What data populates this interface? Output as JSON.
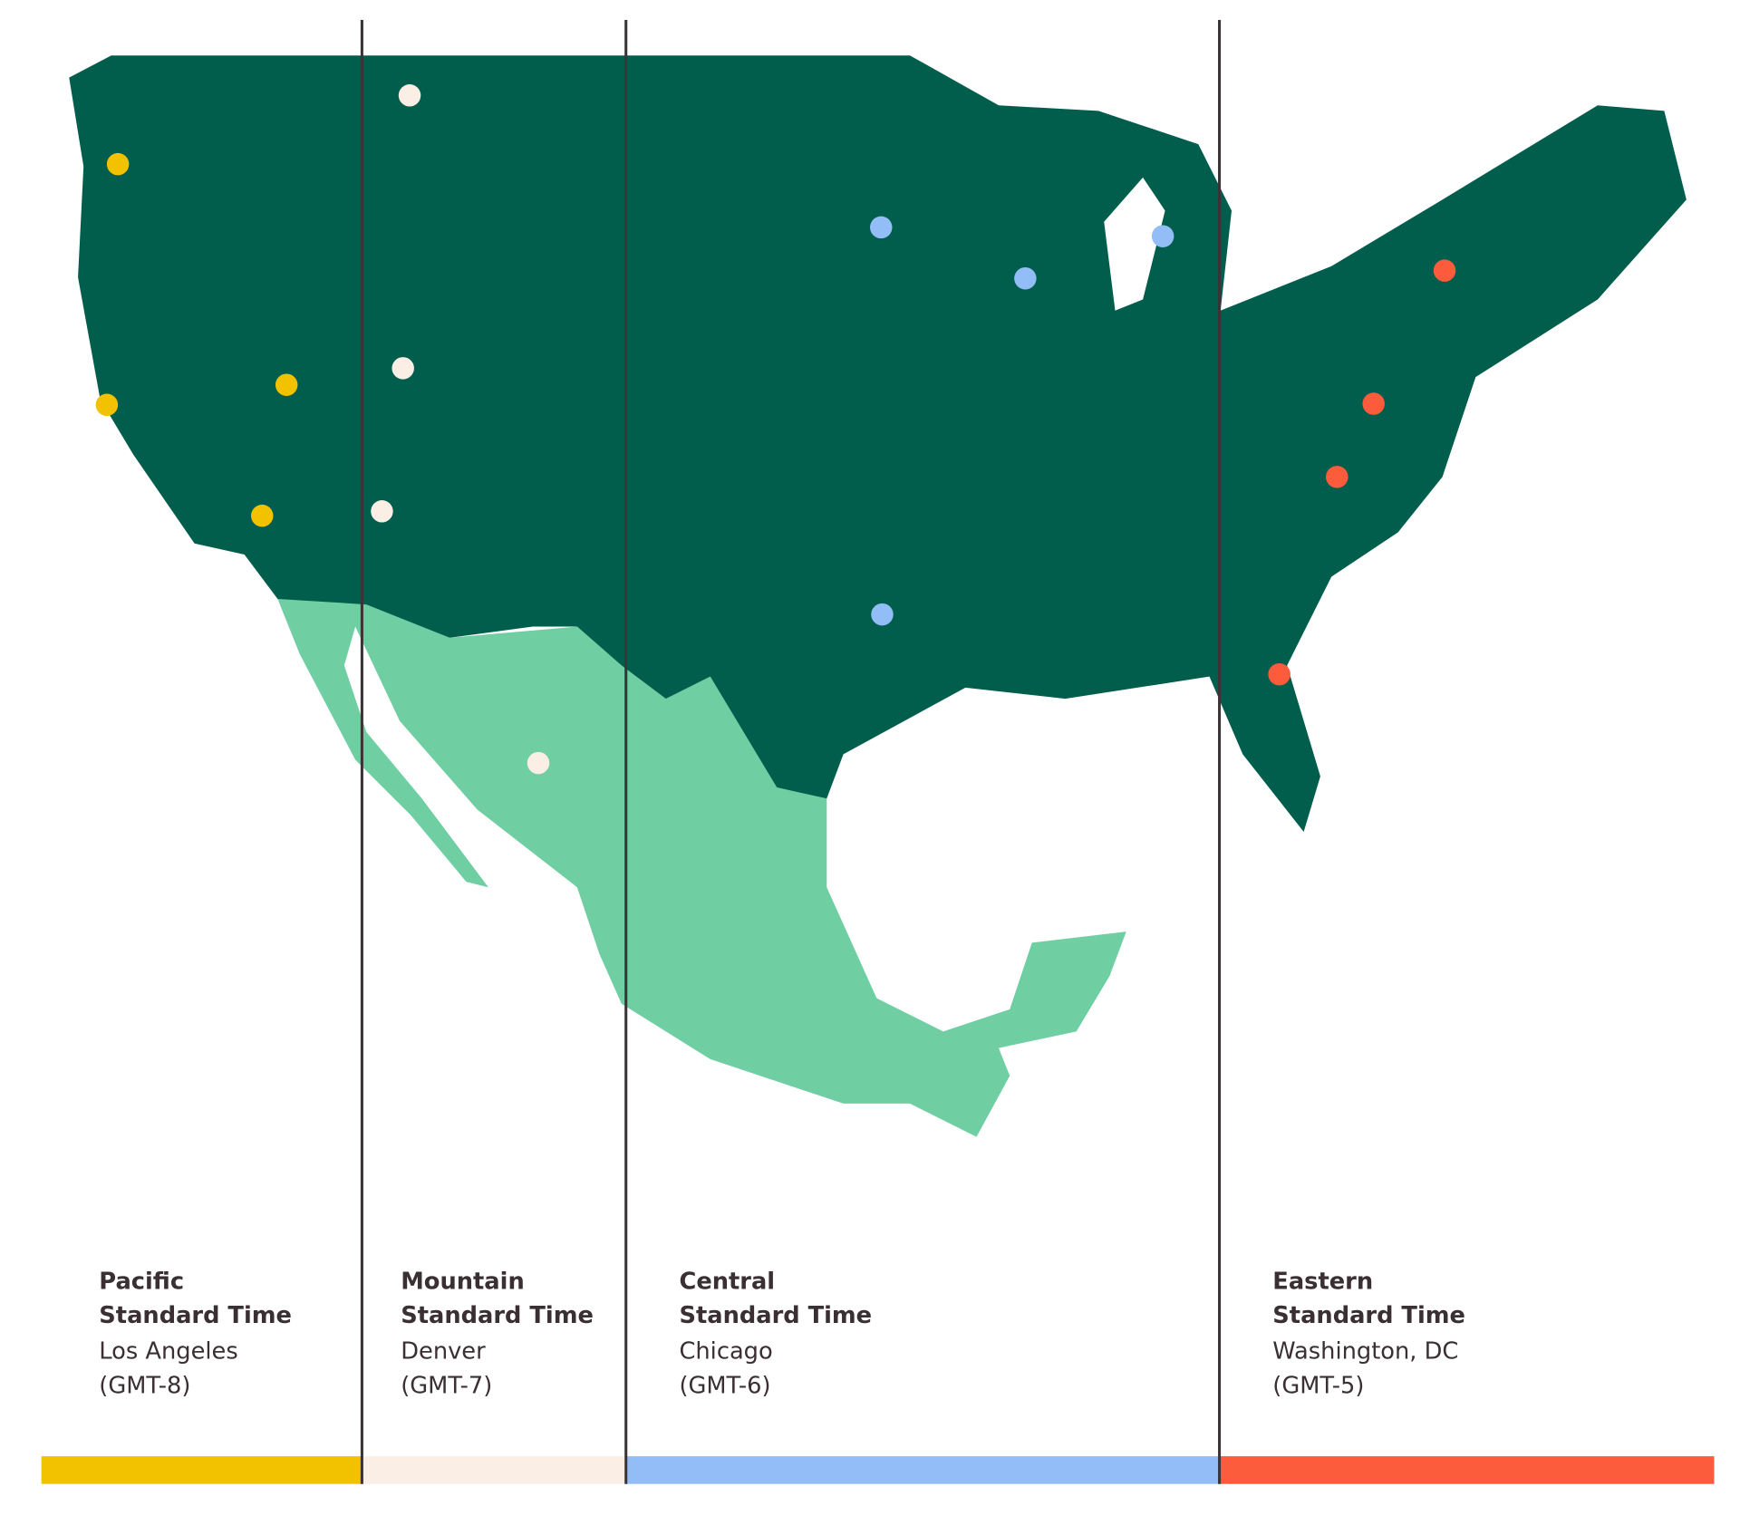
{
  "zones": [
    {
      "name": "Pacific",
      "label": "Standard Time",
      "city": "Los Angeles",
      "offset": "(GMT-8)",
      "color": "#f2c200"
    },
    {
      "name": "Mountain",
      "label": "Standard Time",
      "city": "Denver",
      "offset": "(GMT-7)",
      "color": "#fbeee4"
    },
    {
      "name": "Central",
      "label": "Standard Time",
      "city": "Chicago",
      "offset": "(GMT-6)",
      "color": "#93bdf7"
    },
    {
      "name": "Eastern",
      "label": "Standard Time",
      "city": "Washington, DC",
      "offset": "(GMT-5)",
      "color": "#fd5c3c"
    }
  ]
}
